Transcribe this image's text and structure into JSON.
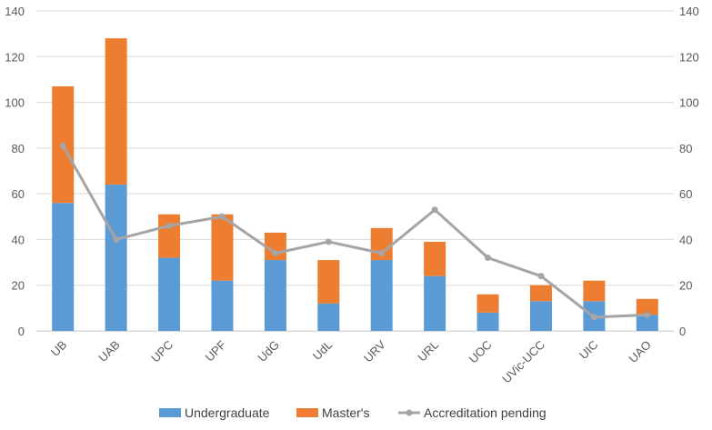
{
  "chart_data": {
    "type": "bar",
    "stacked": true,
    "categories": [
      "UB",
      "UAB",
      "UPC",
      "UPF",
      "UdG",
      "UdL",
      "URV",
      "URL",
      "UOC",
      "UVic-UCC",
      "UIC",
      "UAO"
    ],
    "series": [
      {
        "name": "Undergraduate",
        "type": "bar",
        "axis": "left",
        "color": "#5b9bd5",
        "values": [
          56,
          64,
          32,
          22,
          31,
          12,
          31,
          24,
          8,
          13,
          13,
          7
        ]
      },
      {
        "name": "Master's",
        "type": "bar",
        "axis": "left",
        "color": "#ed7d31",
        "values": [
          51,
          64,
          19,
          29,
          12,
          19,
          14,
          15,
          8,
          7,
          9,
          7
        ]
      },
      {
        "name": "Accreditation pending",
        "type": "line",
        "axis": "right",
        "color": "#a5a5a5",
        "values": [
          81,
          40,
          46,
          50,
          34,
          39,
          34,
          53,
          32,
          24,
          6,
          7
        ]
      }
    ],
    "y_left": {
      "min": 0,
      "max": 140,
      "ticks": [
        "0",
        "20",
        "40",
        "60",
        "80",
        "100",
        "120",
        "140"
      ]
    },
    "y_right": {
      "min": 0,
      "max": 140,
      "ticks": [
        "0",
        "20",
        "40",
        "60",
        "80",
        "100",
        "120",
        "140"
      ]
    },
    "grid": true,
    "gridColor": "#d9d9d9",
    "legend": "bottom"
  }
}
